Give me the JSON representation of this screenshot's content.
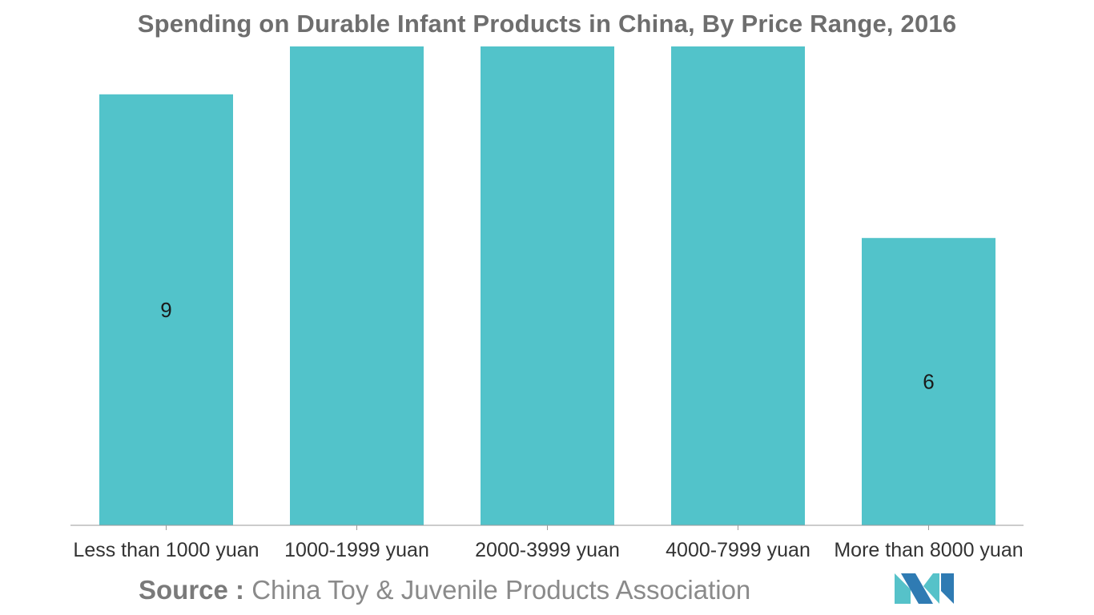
{
  "chart_data": {
    "type": "bar",
    "title": "Spending on Durable Infant Products in China, By Price Range, 2016",
    "categories": [
      "Less than 1000 yuan",
      "1000-1999 yuan",
      "2000-3999 yuan",
      "4000-7999 yuan",
      "More than 8000 yuan"
    ],
    "values": [
      9,
      10,
      10,
      10,
      6
    ],
    "data_labels": [
      "9",
      "",
      "",
      "",
      "6"
    ],
    "xlabel": "",
    "ylabel": "",
    "ylim": [
      0,
      10
    ],
    "grid": false,
    "legend": "none",
    "bar_color": "#52c3ca"
  },
  "source": {
    "prefix": "Source :",
    "text": "China Toy & Juvenile Products Association"
  },
  "colors": {
    "title": "#6e6e6e",
    "axis": "#9a9a9a",
    "logo_dark": "#2f7bb3",
    "logo_light": "#56c2c9"
  },
  "logo": {
    "icon": "mordor-intelligence-logo-icon"
  }
}
